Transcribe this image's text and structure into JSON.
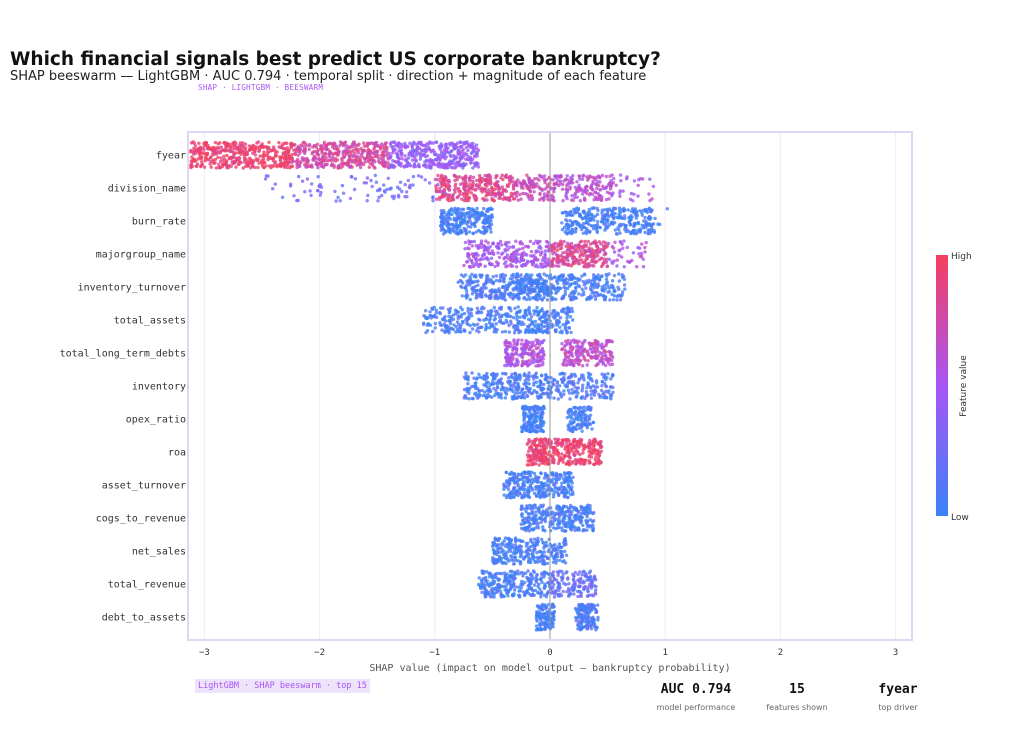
{
  "title": "Which financial signals best predict US corporate bankruptcy?",
  "subtitle": "SHAP beeswarm — LightGBM · AUC 0.794 · temporal split · direction + magnitude of each feature",
  "tag": "SHAP · LIGHTGBM · BEESWARM",
  "footer_tag": "LightGBM · SHAP beeswarm · top 15",
  "kpis": [
    {
      "value": "AUC 0.794",
      "label": "model performance"
    },
    {
      "value": "15",
      "label": "features shown"
    },
    {
      "value": "fyear",
      "label": "top driver"
    }
  ],
  "colors": {
    "low": "#3b82f6",
    "mid": "#a855f7",
    "high": "#f43f5e"
  },
  "chart_data": {
    "type": "scatter",
    "subtype": "beeswarm",
    "xlabel": "SHAP value  (impact on model output — bankruptcy probability)",
    "xlim": [
      -3.15,
      3.15
    ],
    "xticks": [
      -3,
      -2,
      -1,
      0,
      1,
      2,
      3
    ],
    "xtick_labels": [
      "−3",
      "−2",
      "−1",
      "0",
      "1",
      "2",
      "3"
    ],
    "grid": true,
    "colorbar": {
      "title": "Feature value",
      "high_label": "High",
      "low_label": "Low",
      "placement": "right"
    },
    "features": [
      {
        "name": "fyear",
        "clusters": [
          [
            -3.12,
            -2.2,
            0.95,
            420
          ],
          [
            -2.2,
            -1.4,
            0.78,
            380
          ],
          [
            -1.4,
            -0.62,
            0.42,
            360
          ]
        ]
      },
      {
        "name": "division_name",
        "clusters": [
          [
            -2.5,
            -0.9,
            0.25,
            90
          ],
          [
            -1.0,
            -0.3,
            0.85,
            300
          ],
          [
            -0.3,
            0.05,
            0.7,
            120
          ],
          [
            0.05,
            0.55,
            0.6,
            160
          ],
          [
            0.55,
            0.9,
            0.5,
            25
          ]
        ]
      },
      {
        "name": "burn_rate",
        "clusters": [
          [
            -0.95,
            -0.5,
            0.03,
            260
          ],
          [
            0.1,
            0.9,
            0.03,
            320
          ],
          [
            0.9,
            1.08,
            0.05,
            6
          ]
        ]
      },
      {
        "name": "majorgroup_name",
        "clusters": [
          [
            -0.75,
            0.0,
            0.5,
            260
          ],
          [
            0.0,
            0.5,
            0.82,
            240
          ],
          [
            0.5,
            0.85,
            0.55,
            40
          ]
        ]
      },
      {
        "name": "inventory_turnover",
        "clusters": [
          [
            -0.8,
            -0.3,
            0.08,
            180
          ],
          [
            -0.3,
            0.0,
            0.02,
            200
          ],
          [
            0.0,
            0.65,
            0.05,
            220
          ]
        ]
      },
      {
        "name": "total_assets",
        "clusters": [
          [
            -1.1,
            -0.3,
            0.07,
            220
          ],
          [
            -0.3,
            0.2,
            0.03,
            200
          ]
        ]
      },
      {
        "name": "total_long_term_debts",
        "clusters": [
          [
            -0.4,
            -0.05,
            0.55,
            200
          ],
          [
            0.1,
            0.55,
            0.65,
            200
          ]
        ]
      },
      {
        "name": "inventory",
        "clusters": [
          [
            -0.75,
            0.0,
            0.05,
            280
          ],
          [
            0.0,
            0.55,
            0.08,
            160
          ]
        ]
      },
      {
        "name": "opex_ratio",
        "clusters": [
          [
            -0.25,
            -0.05,
            0.02,
            150
          ],
          [
            0.15,
            0.38,
            0.03,
            110
          ]
        ]
      },
      {
        "name": "roa",
        "clusters": [
          [
            -0.2,
            0.0,
            0.97,
            150
          ],
          [
            0.0,
            0.45,
            0.95,
            230
          ]
        ]
      },
      {
        "name": "asset_turnover",
        "clusters": [
          [
            -0.4,
            0.2,
            0.03,
            300
          ]
        ]
      },
      {
        "name": "cogs_to_revenue",
        "clusters": [
          [
            -0.25,
            0.38,
            0.04,
            300
          ]
        ]
      },
      {
        "name": "net_sales",
        "clusters": [
          [
            -0.5,
            0.15,
            0.03,
            280
          ]
        ]
      },
      {
        "name": "total_revenue",
        "clusters": [
          [
            -0.62,
            0.0,
            0.05,
            260
          ],
          [
            0.0,
            0.4,
            0.2,
            160
          ]
        ]
      },
      {
        "name": "debt_to_assets",
        "clusters": [
          [
            -0.12,
            0.04,
            0.03,
            120
          ],
          [
            0.22,
            0.42,
            0.08,
            150
          ]
        ]
      }
    ]
  }
}
